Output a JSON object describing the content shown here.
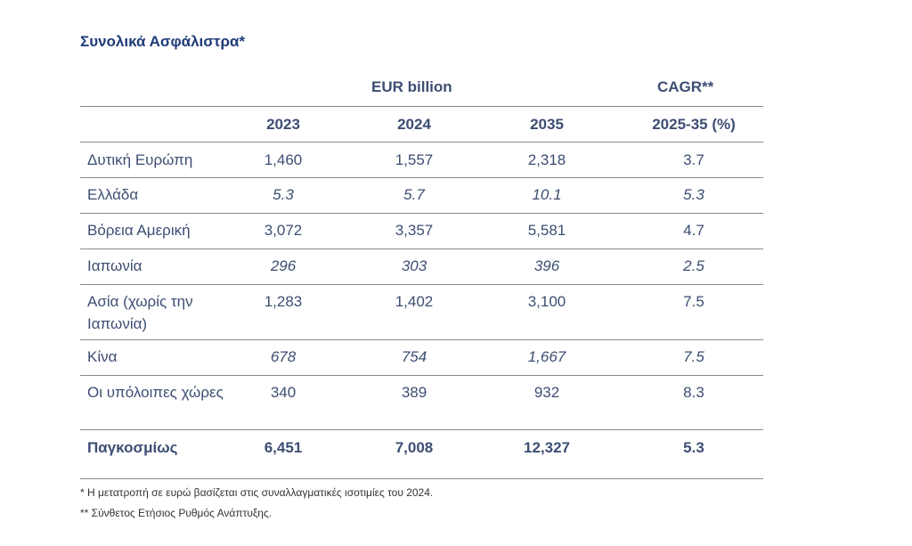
{
  "title": "Συνολικά Ασφάλιστρα*",
  "group_headers": {
    "eur": "EUR billion",
    "cagr": "CAGR**"
  },
  "columns": [
    "2023",
    "2024",
    "2035",
    "2025-35 (%)"
  ],
  "rows": [
    {
      "label": "Δυτική Ευρώπη",
      "values": [
        "1,460",
        "1,557",
        "2,318",
        "3.7"
      ]
    },
    {
      "label": "Ελλάδα",
      "values": [
        "5.3",
        "5.7",
        "10.1",
        "5.3"
      ]
    },
    {
      "label": "Βόρεια Αμερική",
      "values": [
        "3,072",
        "3,357",
        "5,581",
        "4.7"
      ]
    },
    {
      "label": "Ιαπωνία",
      "values": [
        "296",
        "303",
        "396",
        "2.5"
      ]
    },
    {
      "label": "Ασία (χωρίς την Ιαπωνία)",
      "values": [
        "1,283",
        "1,402",
        "3,100",
        "7.5"
      ]
    },
    {
      "label": "Κίνα",
      "values": [
        "678",
        "754",
        "1,667",
        "7.5"
      ]
    },
    {
      "label": "Οι υπόλοιπες χώρες",
      "values": [
        "340",
        "389",
        "932",
        "8.3"
      ]
    },
    {
      "label": "Παγκοσμίως",
      "values": [
        "6,451",
        "7,008",
        "12,327",
        "5.3"
      ]
    }
  ],
  "footnotes": [
    "* Η μετατροπή σε ευρώ βασίζεται στις συναλλαγματικές ισοτιμίες του 2024.",
    "** Σύνθετος Ετήσιος Ρυθμός Ανάπτυξης."
  ]
}
